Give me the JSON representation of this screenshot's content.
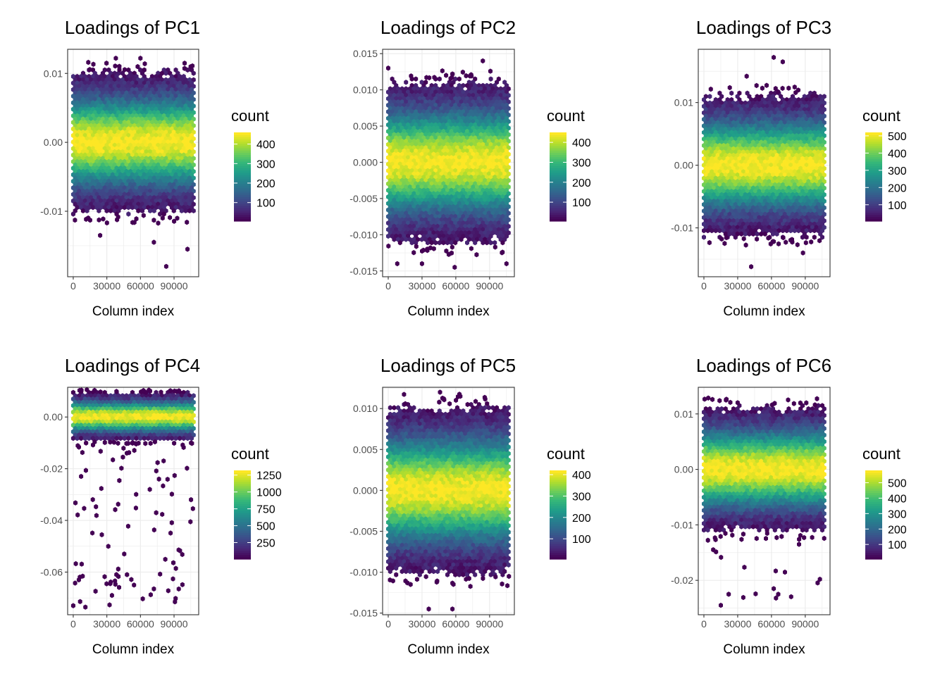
{
  "palette": [
    "#440154",
    "#482878",
    "#3e4a89",
    "#31688e",
    "#26828e",
    "#1f9e89",
    "#35b779",
    "#6ece58",
    "#b5de2b",
    "#fde725"
  ],
  "chart_data": [
    {
      "type": "hexbin",
      "title": "Loadings of PC1",
      "xlabel": "Column index",
      "ylabel": "",
      "xlim": [
        -5000,
        112000
      ],
      "ylim": [
        -0.0195,
        0.0135
      ],
      "x_ticks": [
        0,
        30000,
        60000,
        90000
      ],
      "x_tick_labels": [
        "0",
        "30000",
        "60000",
        "90000"
      ],
      "y_ticks": [
        0.01,
        0.0,
        -0.01
      ],
      "y_tick_labels": [
        "0.01",
        "0.00",
        "-0.01"
      ],
      "x_range": [
        0,
        108000
      ],
      "spread": 0.0105,
      "outliers": [
        [
          24000,
          -0.0135
        ],
        [
          38000,
          0.0122
        ],
        [
          60000,
          0.0122
        ],
        [
          72000,
          -0.0145
        ],
        [
          102000,
          -0.0155
        ],
        [
          83000,
          -0.018
        ]
      ],
      "legend": {
        "title": "count",
        "ticks": [
          100,
          200,
          300,
          400
        ],
        "labels": [
          "100",
          "200",
          "300",
          "400"
        ],
        "min": 5,
        "max": 460
      },
      "grid": true,
      "panel_border": true
    },
    {
      "type": "hexbin",
      "title": "Loadings of PC2",
      "xlabel": "Column index",
      "ylabel": "",
      "xlim": [
        -5000,
        112000
      ],
      "ylim": [
        -0.0158,
        0.0156
      ],
      "x_ticks": [
        0,
        30000,
        60000,
        90000
      ],
      "x_tick_labels": [
        "0",
        "30000",
        "60000",
        "90000"
      ],
      "y_ticks": [
        0.015,
        0.01,
        0.005,
        0.0,
        -0.005,
        -0.01,
        -0.015
      ],
      "y_tick_labels": [
        "0.015",
        "0.010",
        "0.005",
        "0.000",
        "-0.005",
        "-0.010",
        "-0.015"
      ],
      "x_range": [
        0,
        108000
      ],
      "spread": 0.0115,
      "outliers": [
        [
          0,
          0.013
        ],
        [
          84000,
          0.014
        ],
        [
          8000,
          -0.014
        ],
        [
          30000,
          -0.014
        ],
        [
          59000,
          -0.0145
        ],
        [
          105000,
          -0.014
        ]
      ],
      "legend": {
        "title": "count",
        "ticks": [
          100,
          200,
          300,
          400
        ],
        "labels": [
          "100",
          "200",
          "300",
          "400"
        ],
        "min": 5,
        "max": 450
      },
      "grid": true,
      "panel_border": true
    },
    {
      "type": "hexbin",
      "title": "Loadings of PC3",
      "xlabel": "Column index",
      "ylabel": "",
      "xlim": [
        -5000,
        112000
      ],
      "ylim": [
        -0.0178,
        0.0185
      ],
      "x_ticks": [
        0,
        30000,
        60000,
        90000
      ],
      "x_tick_labels": [
        "0",
        "30000",
        "60000",
        "90000"
      ],
      "y_ticks": [
        0.01,
        0.0,
        -0.01
      ],
      "y_tick_labels": [
        "0.01",
        "0.00",
        "-0.01"
      ],
      "x_range": [
        0,
        108000
      ],
      "spread": 0.0115,
      "outliers": [
        [
          62000,
          0.0172
        ],
        [
          70000,
          0.0165
        ],
        [
          38000,
          0.0142
        ],
        [
          88000,
          -0.014
        ],
        [
          42000,
          -0.0162
        ]
      ],
      "legend": {
        "title": "count",
        "ticks": [
          100,
          200,
          300,
          400,
          500
        ],
        "labels": [
          "100",
          "200",
          "300",
          "400",
          "500"
        ],
        "min": 5,
        "max": 520
      },
      "grid": true,
      "panel_border": true
    },
    {
      "type": "hexbin",
      "title": "Loadings of PC4",
      "xlabel": "Column index",
      "ylabel": "",
      "xlim": [
        -5000,
        112000
      ],
      "ylim": [
        -0.0765,
        0.0115
      ],
      "x_ticks": [
        0,
        30000,
        60000,
        90000
      ],
      "x_tick_labels": [
        "0",
        "30000",
        "60000",
        "90000"
      ],
      "y_ticks": [
        0.0,
        -0.02,
        -0.04,
        -0.06
      ],
      "y_tick_labels": [
        "0.00",
        "-0.02",
        "-0.04",
        "-0.06"
      ],
      "x_range": [
        0,
        108000
      ],
      "spread": 0.0095,
      "tail": {
        "min": -0.074,
        "count": 90
      },
      "outliers": [
        [
          0,
          -0.073
        ],
        [
          72000,
          -0.0665
        ],
        [
          48000,
          -0.061
        ],
        [
          5000,
          -0.063
        ]
      ],
      "legend": {
        "title": "count",
        "ticks": [
          250,
          500,
          750,
          1000,
          1250
        ],
        "labels": [
          "250",
          "500",
          "750",
          "1000",
          "1250"
        ],
        "min": 5,
        "max": 1320
      },
      "grid": true,
      "panel_border": true
    },
    {
      "type": "hexbin",
      "title": "Loadings of PC5",
      "xlabel": "Column index",
      "ylabel": "",
      "xlim": [
        -5000,
        112000
      ],
      "ylim": [
        -0.0152,
        0.0126
      ],
      "x_ticks": [
        0,
        30000,
        60000,
        90000
      ],
      "x_tick_labels": [
        "0",
        "30000",
        "60000",
        "90000"
      ],
      "y_ticks": [
        0.01,
        0.005,
        0.0,
        -0.005,
        -0.01,
        -0.015
      ],
      "y_tick_labels": [
        "0.010",
        "0.005",
        "0.000",
        "-0.005",
        "-0.010",
        "-0.015"
      ],
      "x_range": [
        0,
        108000
      ],
      "spread": 0.0105,
      "outliers": [
        [
          36000,
          -0.0145
        ],
        [
          57000,
          -0.0145
        ],
        [
          46000,
          0.012
        ],
        [
          64000,
          0.0115
        ]
      ],
      "legend": {
        "title": "count",
        "ticks": [
          100,
          200,
          300,
          400
        ],
        "labels": [
          "100",
          "200",
          "300",
          "400"
        ],
        "min": 5,
        "max": 420
      },
      "grid": true,
      "panel_border": true
    },
    {
      "type": "hexbin",
      "title": "Loadings of PC6",
      "xlabel": "Column index",
      "ylabel": "",
      "xlim": [
        -5000,
        112000
      ],
      "ylim": [
        -0.0262,
        0.0148
      ],
      "x_ticks": [
        0,
        30000,
        60000,
        90000
      ],
      "x_tick_labels": [
        "0",
        "30000",
        "60000",
        "90000"
      ],
      "y_ticks": [
        0.01,
        0.0,
        -0.01,
        -0.02
      ],
      "y_tick_labels": [
        "0.01",
        "0.00",
        "-0.01",
        "-0.02"
      ],
      "x_range": [
        0,
        108000
      ],
      "spread": 0.0115,
      "tail": {
        "min": -0.0235,
        "count": 12
      },
      "outliers": [
        [
          15000,
          -0.0245
        ],
        [
          22000,
          -0.0225
        ],
        [
          62000,
          -0.0215
        ],
        [
          66000,
          -0.0225
        ],
        [
          64000,
          -0.0232
        ]
      ],
      "legend": {
        "title": "count",
        "ticks": [
          100,
          200,
          300,
          400,
          500
        ],
        "labels": [
          "100",
          "200",
          "300",
          "400",
          "500"
        ],
        "min": 5,
        "max": 580
      },
      "grid": true,
      "panel_border": true
    }
  ]
}
